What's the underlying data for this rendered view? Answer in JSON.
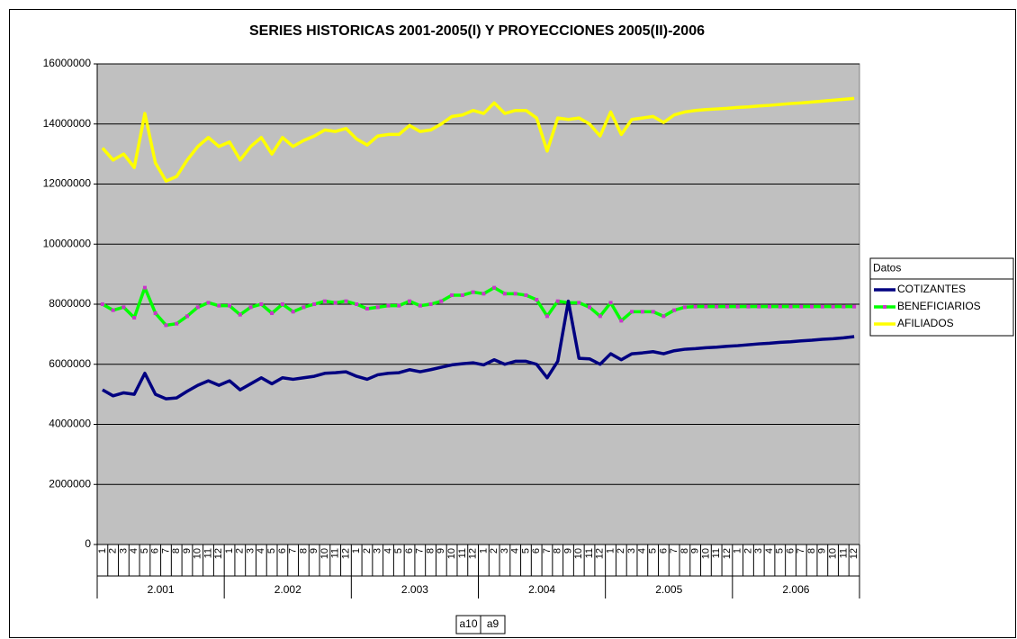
{
  "chart_data": {
    "type": "line",
    "title": "SERIES HISTORICAS 2001-2005(I) Y PROYECCIONES 2005(II)-2006",
    "categories": [
      "1",
      "2",
      "3",
      "4",
      "5",
      "6",
      "7",
      "8",
      "9",
      "10",
      "11",
      "12",
      "1",
      "2",
      "3",
      "4",
      "5",
      "6",
      "7",
      "8",
      "9",
      "10",
      "11",
      "12",
      "1",
      "2",
      "3",
      "4",
      "5",
      "6",
      "7",
      "8",
      "9",
      "10",
      "11",
      "12",
      "1",
      "2",
      "3",
      "4",
      "5",
      "6",
      "7",
      "8",
      "9",
      "10",
      "11",
      "12",
      "1",
      "2",
      "3",
      "4",
      "5",
      "6",
      "7",
      "8",
      "9",
      "10",
      "11",
      "12",
      "1",
      "2",
      "3",
      "4",
      "5",
      "6",
      "7",
      "8",
      "9",
      "10",
      "11",
      "12"
    ],
    "category_groups": [
      "2.001",
      "2.002",
      "2.003",
      "2.004",
      "2.005",
      "2.006"
    ],
    "ylim": [
      0,
      16000000
    ],
    "yticks": [
      0,
      2000000,
      4000000,
      6000000,
      8000000,
      10000000,
      12000000,
      14000000,
      16000000
    ],
    "grid": true,
    "plot_background": "#c0c0c0",
    "legend_title": "Datos",
    "legend_position": "right",
    "pivot_buttons": [
      "a10",
      "a9"
    ],
    "series": [
      {
        "name": "COTIZANTES",
        "color": "#000080",
        "values": [
          5150000,
          4950000,
          5050000,
          5000000,
          5700000,
          5000000,
          4850000,
          4880000,
          5100000,
          5300000,
          5450000,
          5300000,
          5450000,
          5150000,
          5350000,
          5550000,
          5350000,
          5550000,
          5500000,
          5550000,
          5600000,
          5700000,
          5720000,
          5750000,
          5600000,
          5500000,
          5650000,
          5700000,
          5720000,
          5820000,
          5750000,
          5820000,
          5900000,
          5980000,
          6020000,
          6050000,
          5980000,
          6150000,
          6000000,
          6100000,
          6100000,
          6000000,
          5550000,
          6100000,
          8100000,
          6200000,
          6180000,
          6000000,
          6350000,
          6150000,
          6350000,
          6380000,
          6420000,
          6350000,
          6450000,
          6500000,
          6520000,
          6550000,
          6570000,
          6600000,
          6620000,
          6650000,
          6680000,
          6700000,
          6730000,
          6750000,
          6780000,
          6800000,
          6830000,
          6850000,
          6880000,
          6920000
        ]
      },
      {
        "name": "BENEFICIARIOS",
        "color": "#00ff00",
        "marker_color": "#cc33cc",
        "values": [
          8000000,
          7800000,
          7900000,
          7550000,
          8550000,
          7700000,
          7300000,
          7350000,
          7600000,
          7900000,
          8050000,
          7950000,
          7950000,
          7650000,
          7900000,
          8000000,
          7700000,
          8000000,
          7750000,
          7900000,
          8000000,
          8100000,
          8050000,
          8100000,
          8000000,
          7850000,
          7900000,
          7950000,
          7950000,
          8100000,
          7950000,
          8000000,
          8100000,
          8300000,
          8300000,
          8400000,
          8350000,
          8550000,
          8350000,
          8350000,
          8300000,
          8150000,
          7600000,
          8100000,
          8050000,
          8050000,
          7900000,
          7600000,
          8050000,
          7450000,
          7750000,
          7750000,
          7750000,
          7600000,
          7800000,
          7900000,
          7920000,
          7920000,
          7920000,
          7920000,
          7920000,
          7920000,
          7920000,
          7920000,
          7920000,
          7920000,
          7920000,
          7920000,
          7920000,
          7920000,
          7920000,
          7920000
        ]
      },
      {
        "name": "AFILIADOS",
        "color": "#ffff00",
        "values": [
          13200000,
          12800000,
          13000000,
          12550000,
          14350000,
          12700000,
          12100000,
          12250000,
          12800000,
          13250000,
          13550000,
          13250000,
          13400000,
          12800000,
          13250000,
          13550000,
          13000000,
          13550000,
          13250000,
          13450000,
          13600000,
          13800000,
          13750000,
          13850000,
          13500000,
          13300000,
          13600000,
          13650000,
          13650000,
          13950000,
          13750000,
          13800000,
          14000000,
          14250000,
          14300000,
          14450000,
          14350000,
          14700000,
          14350000,
          14450000,
          14450000,
          14200000,
          13100000,
          14200000,
          14150000,
          14200000,
          14000000,
          13600000,
          14400000,
          13650000,
          14150000,
          14200000,
          14250000,
          14050000,
          14300000,
          14400000,
          14450000,
          14480000,
          14500000,
          14520000,
          14550000,
          14570000,
          14600000,
          14620000,
          14650000,
          14680000,
          14700000,
          14730000,
          14760000,
          14790000,
          14820000,
          14850000
        ]
      }
    ]
  }
}
